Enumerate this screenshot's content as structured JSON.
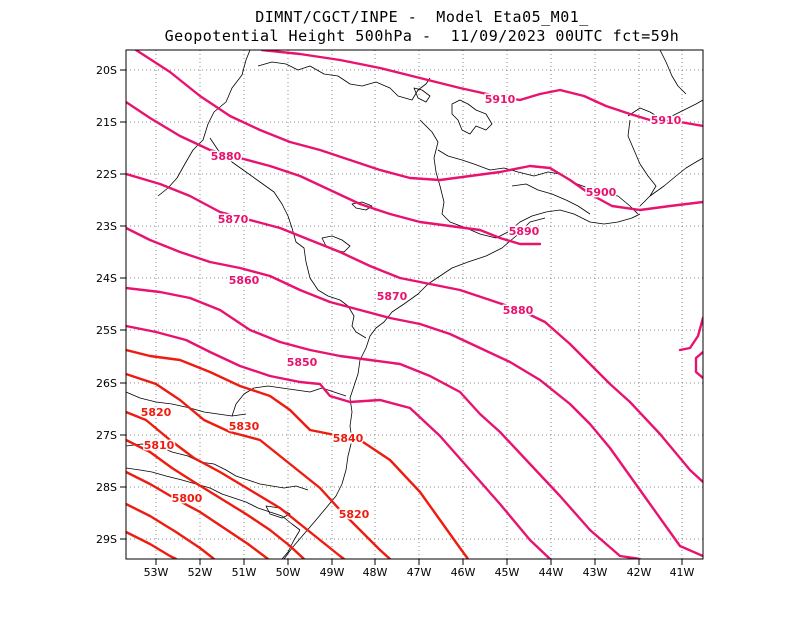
{
  "title_line1": "DIMNT/CGCT/INPE -  Model Eta05_M01_",
  "title_line2": "Geopotential Height 500hPa -  11/09/2023 00UTC fct=59h",
  "lon_labels": [
    "53W",
    "52W",
    "51W",
    "50W",
    "49W",
    "48W",
    "47W",
    "46W",
    "45W",
    "44W",
    "43W",
    "42W",
    "41W"
  ],
  "lat_labels": [
    "20S",
    "21S",
    "22S",
    "23S",
    "24S",
    "25S",
    "26S",
    "27S",
    "28S",
    "29S"
  ],
  "contour_labels": [
    "5910",
    "5910",
    "5900",
    "5890",
    "5880",
    "5880",
    "5870",
    "5870",
    "5860",
    "5850",
    "5840",
    "5830",
    "5820",
    "5820",
    "5810",
    "5800"
  ],
  "colors": {
    "high": "#e8136f",
    "low": "#ee1c10",
    "border": "#000000",
    "grid": "#888888"
  }
}
